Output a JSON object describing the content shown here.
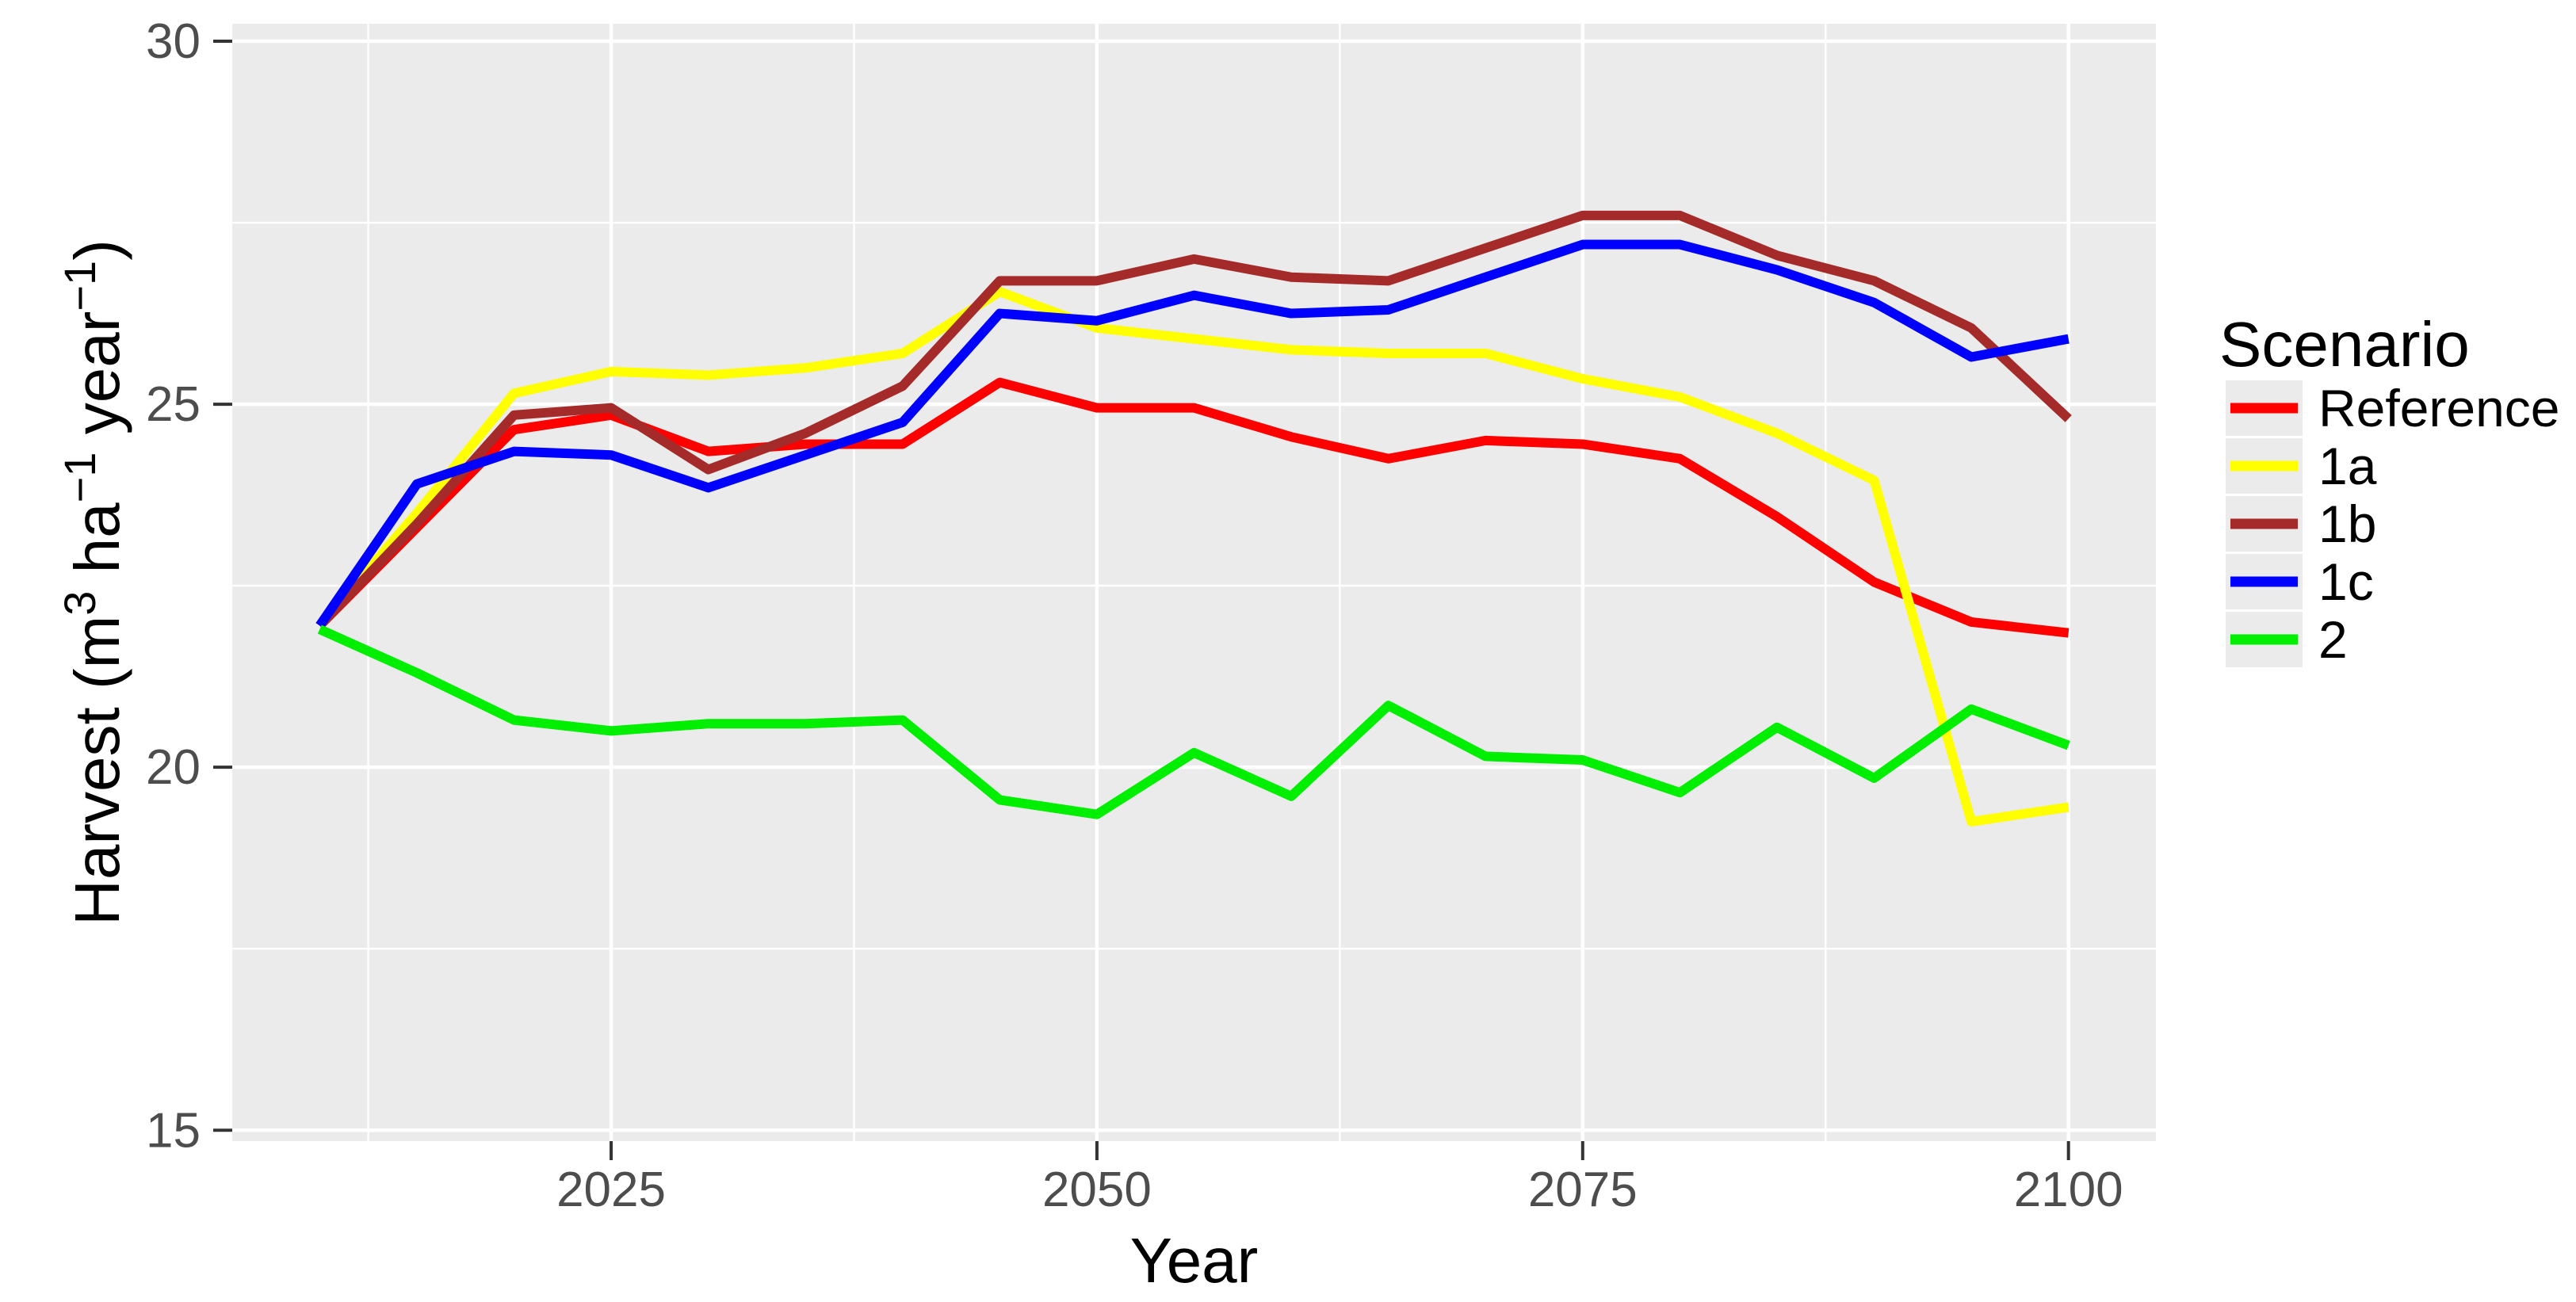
{
  "chart_data": {
    "type": "line",
    "title": "",
    "xlabel": "Year",
    "ylabel": "Harvest (m³ ha⁻¹ year⁻¹)",
    "ylabel_segments": [
      {
        "t": "Harvest (m",
        "sup": false
      },
      {
        "t": "3",
        "sup": true
      },
      {
        "t": " ha",
        "sup": false
      },
      {
        "t": "−1",
        "sup": true
      },
      {
        "t": " year",
        "sup": false
      },
      {
        "t": "−1",
        "sup": true
      },
      {
        "t": ")",
        "sup": false
      }
    ],
    "legend_title": "Scenario",
    "legend_position": "right",
    "grid": true,
    "x": [
      2010,
      2015,
      2020,
      2025,
      2030,
      2035,
      2040,
      2045,
      2050,
      2055,
      2060,
      2065,
      2070,
      2075,
      2080,
      2085,
      2090,
      2095,
      2100
    ],
    "series": [
      {
        "name": "Reference",
        "color": "#FF0000",
        "values": [
          21.95,
          23.3,
          24.65,
          24.85,
          24.35,
          24.45,
          24.45,
          25.3,
          24.95,
          24.95,
          24.55,
          24.25,
          24.5,
          24.45,
          24.25,
          23.45,
          22.55,
          22.0,
          21.85
        ]
      },
      {
        "name": "1a",
        "color": "#FFFF00",
        "values": [
          21.95,
          23.5,
          25.15,
          25.45,
          25.4,
          25.5,
          25.7,
          26.55,
          26.05,
          25.9,
          25.75,
          25.7,
          25.7,
          25.35,
          25.1,
          24.6,
          23.95,
          19.25,
          19.45
        ]
      },
      {
        "name": "1b",
        "color": "#A52A2A",
        "values": [
          21.95,
          23.35,
          24.85,
          24.95,
          24.1,
          24.6,
          25.25,
          26.7,
          26.7,
          27.0,
          26.75,
          26.7,
          27.15,
          27.6,
          27.6,
          27.05,
          26.7,
          26.05,
          24.8
        ]
      },
      {
        "name": "1c",
        "color": "#0000FF",
        "values": [
          21.95,
          23.9,
          24.35,
          24.3,
          23.85,
          24.3,
          24.75,
          26.25,
          26.15,
          26.5,
          26.25,
          26.3,
          26.75,
          27.2,
          27.2,
          26.85,
          26.4,
          25.65,
          25.9
        ]
      },
      {
        "name": "2",
        "color": "#00EE00",
        "values": [
          21.9,
          21.3,
          20.65,
          20.5,
          20.6,
          20.6,
          20.65,
          19.55,
          19.35,
          20.2,
          19.6,
          20.85,
          20.15,
          20.1,
          19.65,
          20.55,
          19.85,
          20.8,
          20.3
        ]
      }
    ],
    "x_ticks": [
      2025,
      2050,
      2075,
      2100
    ],
    "x_minor": [
      2012.5,
      2037.5,
      2062.5,
      2087.5
    ],
    "y_ticks": [
      15,
      20,
      25,
      30
    ],
    "y_minor": [
      17.5,
      22.5,
      27.5
    ],
    "xlim": [
      2005.5,
      2104.5
    ],
    "ylim": [
      14.85,
      30.24
    ],
    "style": {
      "panel_bg": "#EBEBEB",
      "grid_color": "#FFFFFF",
      "tick_mark_color": "#333333",
      "tick_label_color": "#4D4D4D",
      "axis_title_color": "#000000",
      "legend_key_bg": "#EBEBEB",
      "legend_text_color": "#000000"
    }
  }
}
